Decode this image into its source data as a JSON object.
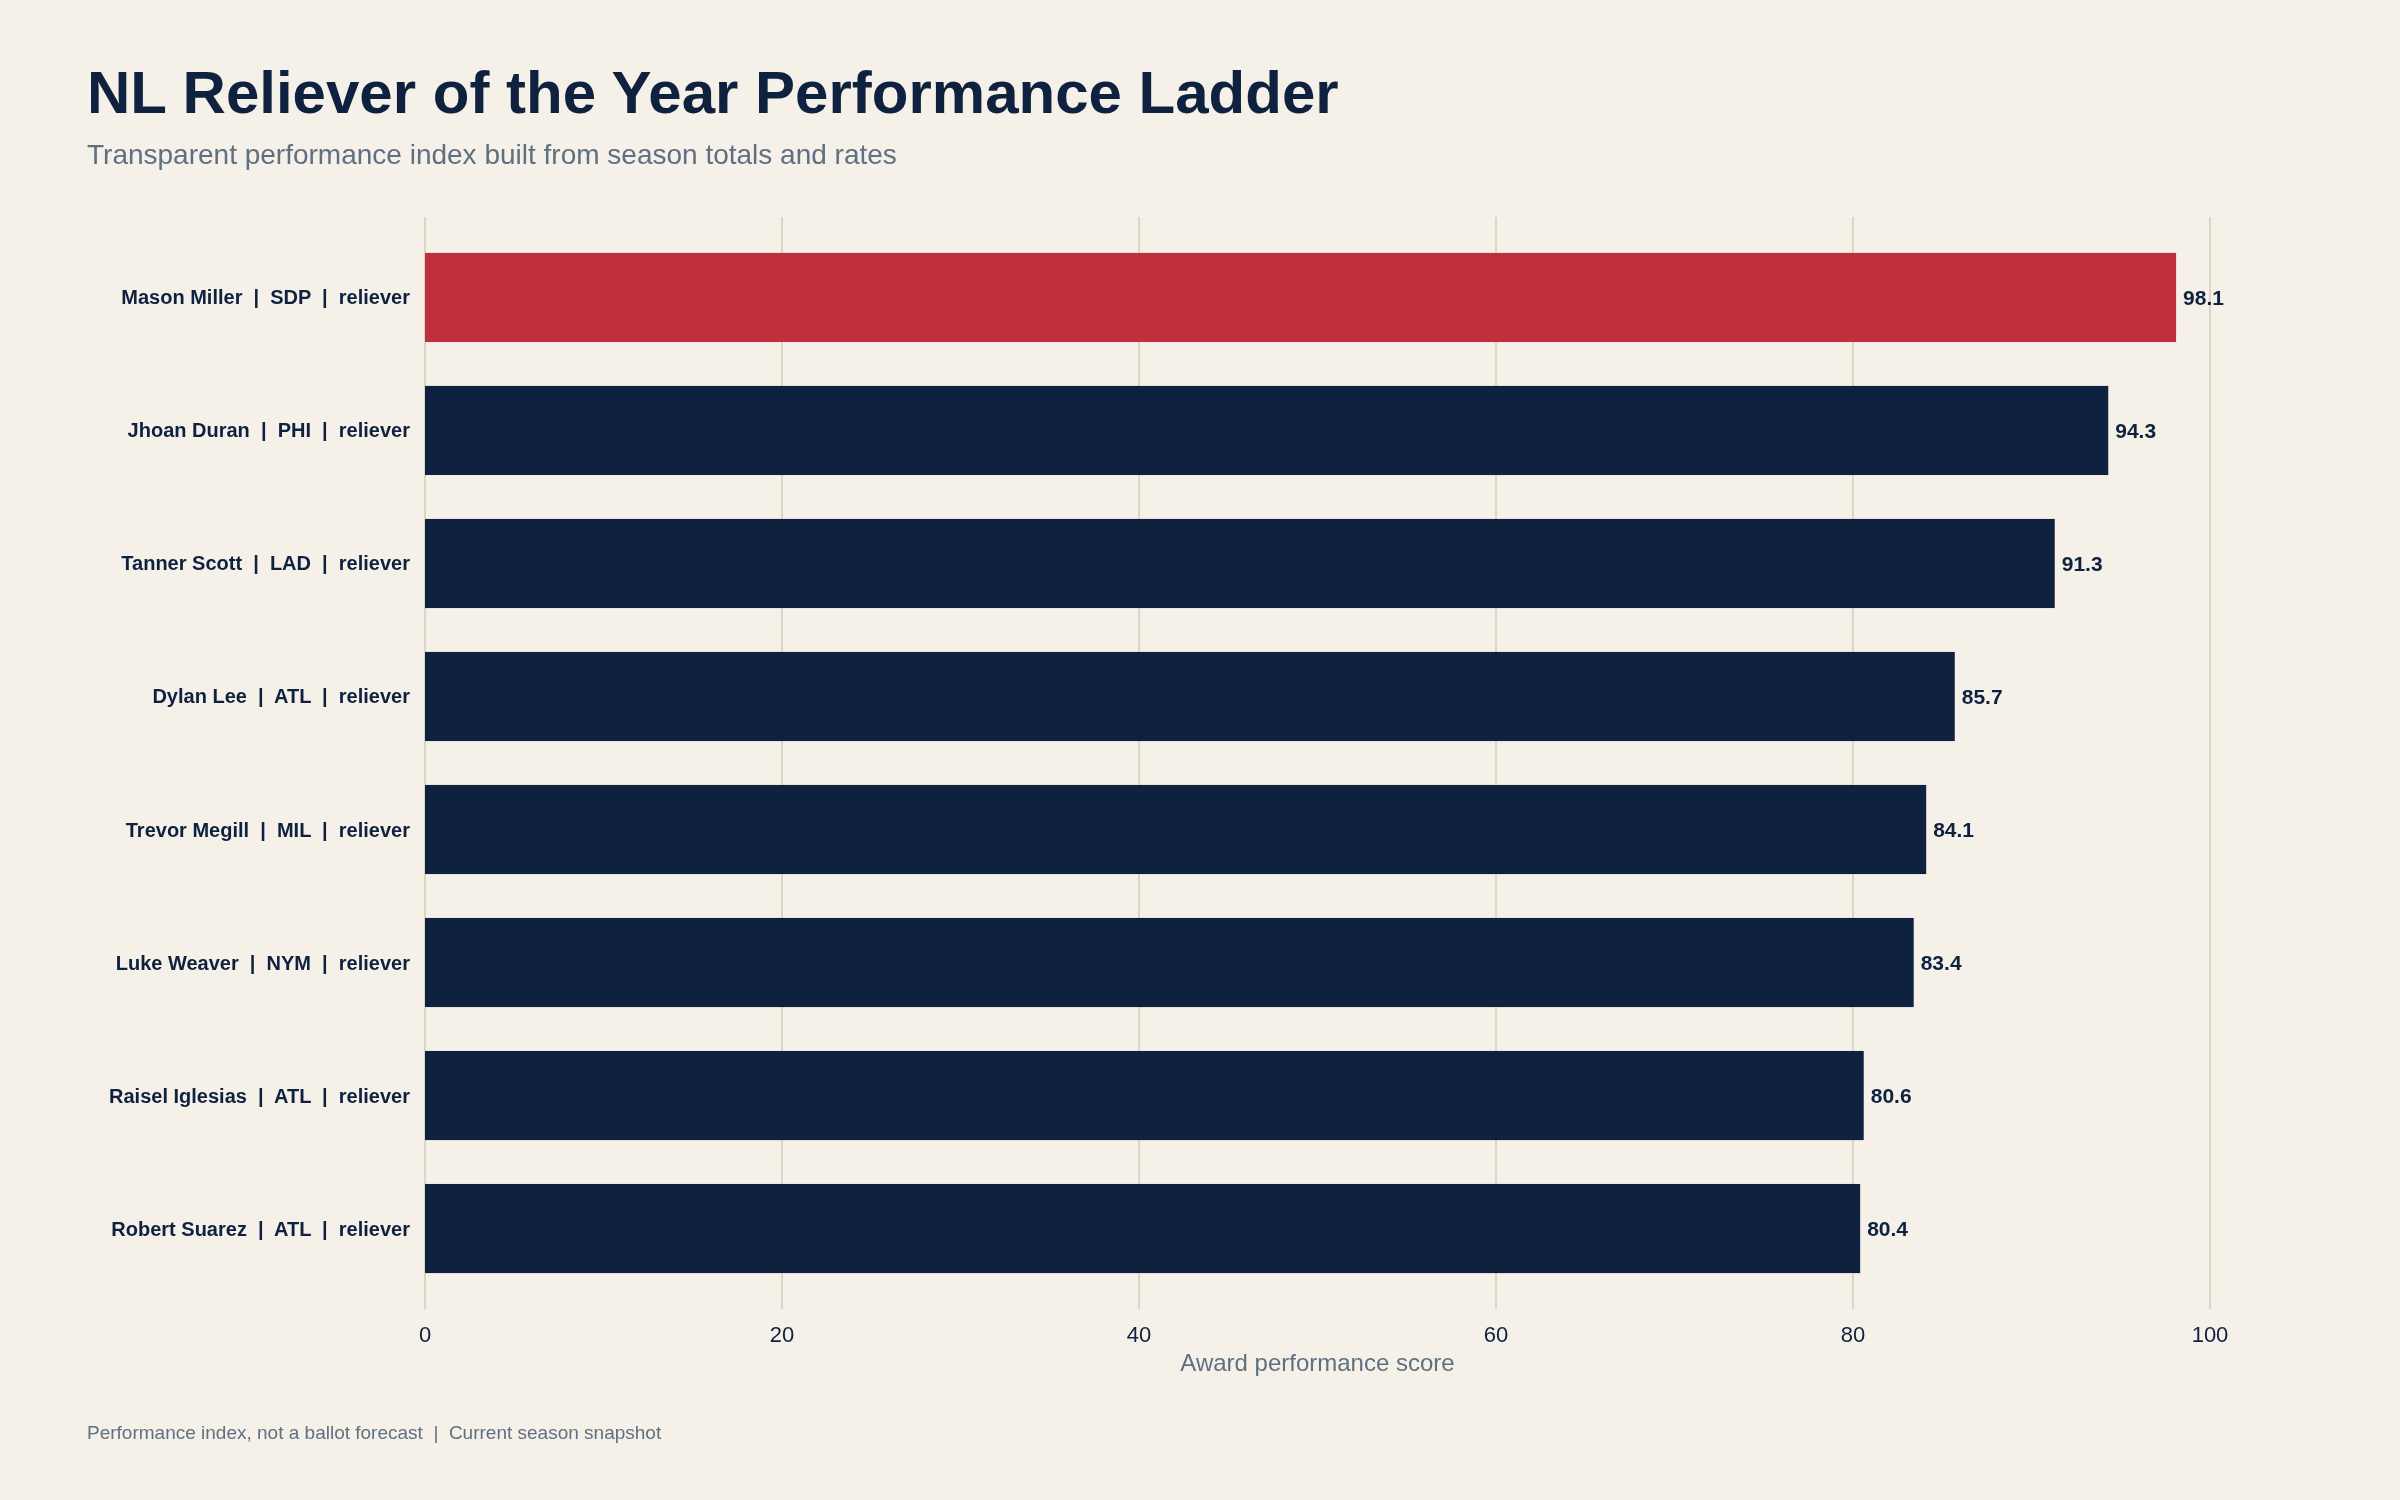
{
  "chart_data": {
    "type": "bar",
    "orientation": "horizontal",
    "title": "NL Reliever of the Year Performance Ladder",
    "subtitle": "Transparent performance index built from season totals and rates",
    "xlabel": "Award performance score",
    "categories": [
      "Mason Miller  |  SDP  |  reliever",
      "Jhoan Duran  |  PHI  |  reliever",
      "Tanner Scott  |  LAD  |  reliever",
      "Dylan Lee  |  ATL  |  reliever",
      "Trevor Megill  |  MIL  |  reliever",
      "Luke Weaver  |  NYM  |  reliever",
      "Raisel Iglesias  |  ATL  |  reliever",
      "Robert Suarez  |  ATL  |  reliever"
    ],
    "values": [
      98.1,
      94.3,
      91.3,
      85.7,
      84.1,
      83.4,
      80.6,
      80.4
    ],
    "colors": [
      "#bf303c",
      "#0e2240",
      "#0e2240",
      "#0e2240",
      "#0e2240",
      "#0e2240",
      "#0e2240",
      "#0e2240"
    ],
    "xlim": [
      0,
      100
    ],
    "xticks": [
      0,
      20,
      40,
      60,
      80,
      100
    ],
    "grid": "x",
    "data_labels": true,
    "annotations": [
      "Performance index, not a ballot forecast  |  Current season snapshot"
    ]
  }
}
